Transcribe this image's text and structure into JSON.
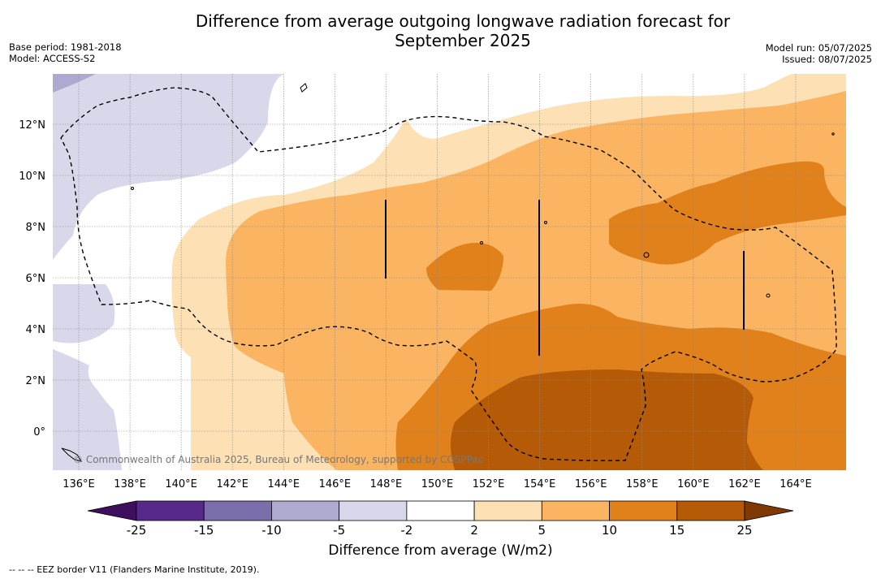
{
  "title_line1": "Difference from average outgoing longwave radiation forecast for",
  "title_line2": "September 2025",
  "meta": {
    "base_period": "Base period: 1981-2018",
    "model": "Model: ACCESS-S2",
    "model_run": "Model run: 05/07/2025",
    "issued": "Issued: 08/07/2025"
  },
  "map": {
    "lon_labels": [
      "136°E",
      "138°E",
      "140°E",
      "142°E",
      "144°E",
      "146°E",
      "148°E",
      "150°E",
      "152°E",
      "154°E",
      "156°E",
      "158°E",
      "160°E",
      "162°E",
      "164°E"
    ],
    "lat_labels": [
      "12°N",
      "10°N",
      "8°N",
      "6°N",
      "4°N",
      "2°N",
      "0°"
    ],
    "copyright": "© Commonwealth of Australia 2025, Bureau of Meteorology, supported by COSPPac"
  },
  "colorbar": {
    "ticks": [
      "-25",
      "-15",
      "-10",
      "-5",
      "-2",
      "2",
      "5",
      "10",
      "15",
      "25"
    ],
    "colors": [
      "#3f0f5f",
      "#55288a",
      "#7b6eaa",
      "#aeaacf",
      "#d8d8ea",
      "#ffffff",
      "#fde0b4",
      "#fab462",
      "#e0811b",
      "#b55b08",
      "#7f3a04"
    ],
    "label": "Difference from average (W/m2)"
  },
  "footnote": "--  --  -- EEZ border V11 (Flanders Marine Institute, 2019)."
}
